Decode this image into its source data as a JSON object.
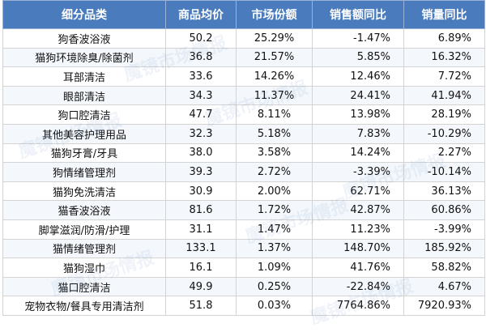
{
  "table": {
    "headers": [
      "细分品类",
      "商品均价",
      "市场份额",
      "销售额同比",
      "销量同比"
    ],
    "rows": [
      [
        "狗香波浴液",
        "50.2",
        "25.29%",
        "-1.47%",
        "6.89%"
      ],
      [
        "猫狗环境除臭/除菌剂",
        "36.8",
        "21.57%",
        "5.85%",
        "16.32%"
      ],
      [
        "耳部清洁",
        "33.6",
        "14.26%",
        "12.46%",
        "7.72%"
      ],
      [
        "眼部清洁",
        "34.3",
        "11.37%",
        "24.41%",
        "41.94%"
      ],
      [
        "狗口腔清洁",
        "47.7",
        "8.11%",
        "13.98%",
        "28.19%"
      ],
      [
        "其他美容护理用品",
        "32.3",
        "5.18%",
        "7.83%",
        "-10.29%"
      ],
      [
        "猫狗牙膏/牙具",
        "38.0",
        "3.58%",
        "14.24%",
        "2.27%"
      ],
      [
        "狗情绪管理剂",
        "39.3",
        "2.72%",
        "-3.39%",
        "-10.14%"
      ],
      [
        "猫狗免洗清洁",
        "30.9",
        "2.00%",
        "62.71%",
        "36.13%"
      ],
      [
        "猫香波浴液",
        "81.6",
        "1.72%",
        "42.87%",
        "60.86%"
      ],
      [
        "脚掌滋润/防滑/护理",
        "31.1",
        "1.47%",
        "11.23%",
        "-3.99%"
      ],
      [
        "猫情绪管理剂",
        "133.1",
        "1.37%",
        "148.70%",
        "185.92%"
      ],
      [
        "猫狗湿巾",
        "16.1",
        "1.09%",
        "41.76%",
        "58.82%"
      ],
      [
        "猫口腔清洁",
        "49.9",
        "0.25%",
        "-22.84%",
        "4.67%"
      ],
      [
        "宠物衣物/餐具专用清洁剂",
        "51.8",
        "0.03%",
        "7764.86%",
        "7920.93%"
      ]
    ]
  },
  "colors": {
    "header_bg": "#4a7bbd",
    "header_text": "#ffffff",
    "grid": "#d3d3d3"
  },
  "watermark": {
    "text": "魔镜市场情报"
  }
}
